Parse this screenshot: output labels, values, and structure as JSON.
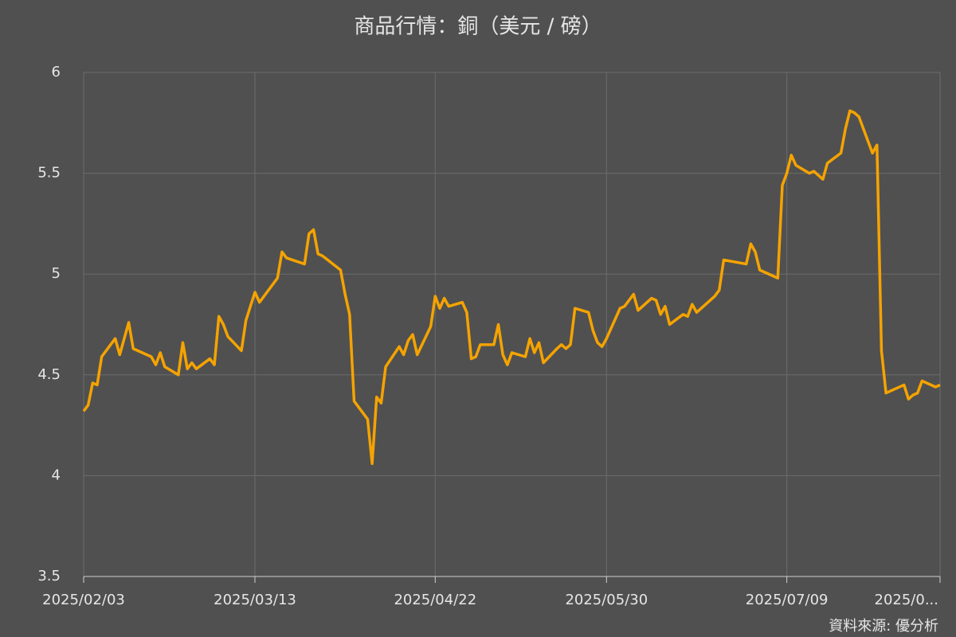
{
  "chart_data": {
    "type": "line",
    "title": "商品行情：銅（美元 / 磅）",
    "source": "資料來源: 優分析",
    "x": [
      "2025/02/03",
      "2025/02/04",
      "2025/02/05",
      "2025/02/06",
      "2025/02/07",
      "2025/02/10",
      "2025/02/11",
      "2025/02/13",
      "2025/02/14",
      "2025/02/18",
      "2025/02/19",
      "2025/02/20",
      "2025/02/21",
      "2025/02/24",
      "2025/02/25",
      "2025/02/26",
      "2025/02/27",
      "2025/02/28",
      "2025/03/03",
      "2025/03/04",
      "2025/03/05",
      "2025/03/06",
      "2025/03/07",
      "2025/03/10",
      "2025/03/11",
      "2025/03/12",
      "2025/03/13",
      "2025/03/14",
      "2025/03/18",
      "2025/03/19",
      "2025/03/20",
      "2025/03/24",
      "2025/03/25",
      "2025/03/26",
      "2025/03/27",
      "2025/03/28",
      "2025/04/01",
      "2025/04/02",
      "2025/04/03",
      "2025/04/04",
      "2025/04/07",
      "2025/04/08",
      "2025/04/09",
      "2025/04/10",
      "2025/04/11",
      "2025/04/14",
      "2025/04/15",
      "2025/04/16",
      "2025/04/17",
      "2025/04/18",
      "2025/04/21",
      "2025/04/22",
      "2025/04/23",
      "2025/04/24",
      "2025/04/25",
      "2025/04/28",
      "2025/04/29",
      "2025/04/30",
      "2025/05/01",
      "2025/05/02",
      "2025/05/05",
      "2025/05/06",
      "2025/05/07",
      "2025/05/08",
      "2025/05/09",
      "2025/05/12",
      "2025/05/13",
      "2025/05/14",
      "2025/05/15",
      "2025/05/16",
      "2025/05/19",
      "2025/05/20",
      "2025/05/21",
      "2025/05/22",
      "2025/05/23",
      "2025/05/26",
      "2025/05/27",
      "2025/05/28",
      "2025/05/29",
      "2025/05/30",
      "2025/06/02",
      "2025/06/03",
      "2025/06/04",
      "2025/06/05",
      "2025/06/06",
      "2025/06/09",
      "2025/06/10",
      "2025/06/11",
      "2025/06/12",
      "2025/06/13",
      "2025/06/16",
      "2025/06/17",
      "2025/06/18",
      "2025/06/19",
      "2025/06/23",
      "2025/06/24",
      "2025/06/25",
      "2025/06/30",
      "2025/07/01",
      "2025/07/02",
      "2025/07/03",
      "2025/07/07",
      "2025/07/08",
      "2025/07/09",
      "2025/07/10",
      "2025/07/11",
      "2025/07/14",
      "2025/07/15",
      "2025/07/16",
      "2025/07/17",
      "2025/07/18",
      "2025/07/21",
      "2025/07/22",
      "2025/07/23",
      "2025/07/24",
      "2025/07/25",
      "2025/07/28",
      "2025/07/29",
      "2025/07/30",
      "2025/07/31",
      "2025/08/04",
      "2025/08/05",
      "2025/08/06",
      "2025/08/07",
      "2025/08/08",
      "2025/08/11",
      "2025/08/12"
    ],
    "series": [
      {
        "name": "銅",
        "color": "#f5a300",
        "values": [
          4.32,
          4.35,
          4.46,
          4.45,
          4.59,
          4.68,
          4.6,
          4.76,
          4.63,
          4.59,
          4.55,
          4.61,
          4.54,
          4.5,
          4.66,
          4.53,
          4.56,
          4.53,
          4.58,
          4.55,
          4.79,
          4.75,
          4.69,
          4.62,
          4.77,
          4.84,
          4.91,
          4.86,
          4.98,
          5.11,
          5.08,
          5.05,
          5.2,
          5.22,
          5.1,
          5.09,
          5.02,
          4.9,
          4.8,
          4.37,
          4.28,
          4.06,
          4.39,
          4.36,
          4.54,
          4.64,
          4.6,
          4.67,
          4.7,
          4.6,
          4.74,
          4.89,
          4.83,
          4.88,
          4.84,
          4.86,
          4.81,
          4.58,
          4.59,
          4.65,
          4.65,
          4.75,
          4.6,
          4.55,
          4.61,
          4.59,
          4.68,
          4.61,
          4.66,
          4.56,
          4.63,
          4.65,
          4.63,
          4.65,
          4.83,
          4.81,
          4.72,
          4.66,
          4.64,
          4.68,
          4.83,
          4.84,
          4.87,
          4.9,
          4.82,
          4.88,
          4.87,
          4.8,
          4.84,
          4.75,
          4.8,
          4.79,
          4.85,
          4.81,
          4.89,
          4.92,
          5.07,
          5.05,
          5.15,
          5.11,
          5.02,
          4.98,
          5.44,
          5.5,
          5.59,
          5.54,
          5.5,
          5.51,
          5.49,
          5.47,
          5.55,
          5.6,
          5.72,
          5.81,
          5.8,
          5.78,
          5.6,
          5.64,
          4.62,
          4.41,
          4.45,
          4.38,
          4.4,
          4.41,
          4.47,
          4.44,
          4.45
        ]
      }
    ],
    "xlim": [
      "2025/02/03",
      "2025/08/12"
    ],
    "xticks": [
      "2025/02/03",
      "2025/03/13",
      "2025/04/22",
      "2025/05/30",
      "2025/07/09",
      {
        "value": "2025/08/12",
        "label": "2025/0..."
      }
    ],
    "ylim": [
      3.5,
      6
    ],
    "yticks": [
      3.5,
      4,
      4.5,
      5,
      5.5,
      6
    ],
    "grid": true
  }
}
